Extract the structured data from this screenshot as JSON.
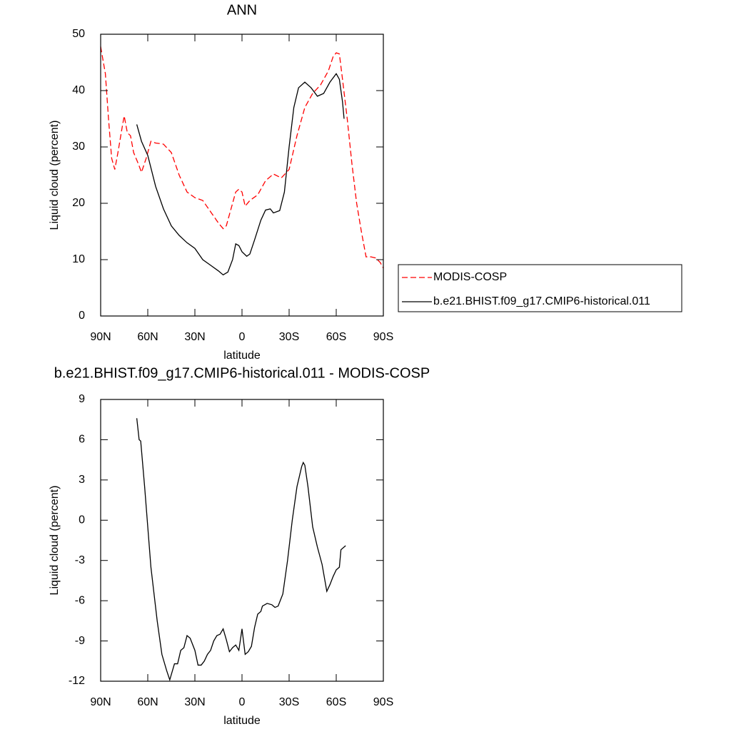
{
  "chart_data": [
    {
      "type": "line",
      "title": "ANN",
      "xlabel": "latitude",
      "ylabel": "Liquid cloud (percent)",
      "xlim": [
        90,
        -90
      ],
      "xticks": [
        {
          "value": 90,
          "label": "90N"
        },
        {
          "value": 60,
          "label": "60N"
        },
        {
          "value": 30,
          "label": "30N"
        },
        0,
        {
          "value": -30,
          "label": "30S"
        },
        {
          "value": -60,
          "label": "60S"
        },
        {
          "value": -90,
          "label": "90S"
        }
      ],
      "ylim": [
        0,
        50
      ],
      "yticks": [
        0,
        10,
        20,
        30,
        40,
        50
      ],
      "legend": "right",
      "series": [
        {
          "name": "MODIS-COSP",
          "color": "#ff0000",
          "dash": "dashed",
          "x": [
            90,
            87,
            85,
            83,
            81,
            79,
            76,
            75,
            73,
            71,
            69,
            66,
            64,
            61,
            58,
            55,
            50,
            45,
            40,
            35,
            30,
            25,
            20,
            15,
            12,
            10,
            7,
            4,
            2,
            0,
            -2,
            -5,
            -10,
            -15,
            -20,
            -25,
            -30,
            -35,
            -40,
            -45,
            -50,
            -55,
            -58,
            -60,
            -62,
            -64,
            -67,
            -70,
            -73,
            -76,
            -79,
            -82,
            -85,
            -88,
            -90
          ],
          "values": [
            47.8,
            43,
            35,
            28,
            26,
            29,
            34,
            35.5,
            32.5,
            32,
            29,
            27,
            25.5,
            28,
            31,
            30.7,
            30.5,
            29,
            25,
            22,
            21,
            20.5,
            18.5,
            16.5,
            15.5,
            16,
            19,
            22,
            22.5,
            22,
            19.5,
            20.5,
            21.5,
            24,
            25.2,
            24.5,
            26,
            32,
            37,
            39.5,
            41,
            43.5,
            46,
            46.7,
            46.5,
            42,
            35,
            27,
            20,
            15,
            10.5,
            10.5,
            10.3,
            9.5,
            8.5
          ]
        },
        {
          "name": "b.e21.BHIST.f09_g17.CMIP6-historical.011",
          "color": "#000000",
          "dash": "solid",
          "x": [
            67,
            64,
            60,
            55,
            50,
            45,
            40,
            35,
            30,
            25,
            20,
            15,
            12,
            9,
            6,
            4,
            2,
            0,
            -3,
            -5,
            -8,
            -12,
            -15,
            -18,
            -20,
            -24,
            -27,
            -30,
            -33,
            -36,
            -40,
            -44,
            -48,
            -52,
            -56,
            -60,
            -62,
            -64,
            -65
          ],
          "values": [
            34,
            31,
            28.5,
            23,
            19,
            16,
            14.3,
            13,
            12,
            10,
            9,
            8,
            7.3,
            7.8,
            10,
            12.8,
            12.5,
            11.4,
            10.6,
            11,
            13.5,
            17,
            18.8,
            19,
            18.3,
            18.7,
            22,
            30,
            37,
            40.5,
            41.5,
            40.5,
            39,
            39.5,
            41.5,
            43,
            42,
            38,
            35
          ]
        }
      ]
    },
    {
      "type": "line",
      "title": "b.e21.BHIST.f09_g17.CMIP6-historical.011 - MODIS-COSP",
      "xlabel": "latitude",
      "ylabel": "Liquid cloud (percent)",
      "xlim": [
        90,
        -90
      ],
      "xticks": [
        {
          "value": 90,
          "label": "90N"
        },
        {
          "value": 60,
          "label": "60N"
        },
        {
          "value": 30,
          "label": "30N"
        },
        0,
        {
          "value": -30,
          "label": "30S"
        },
        {
          "value": -60,
          "label": "60S"
        },
        {
          "value": -90,
          "label": "90S"
        }
      ],
      "ylim": [
        -12,
        9
      ],
      "yticks": [
        -12,
        -9,
        -6,
        -3,
        0,
        3,
        6,
        9
      ],
      "series": [
        {
          "color": "#000000",
          "dash": "solid",
          "x": [
            67,
            65.5,
            64.5,
            62,
            58,
            54,
            51,
            48,
            46,
            43,
            41,
            39,
            37,
            35,
            33,
            30,
            28,
            26,
            24,
            22,
            20,
            18,
            16,
            14,
            12,
            10,
            8,
            6,
            4,
            2,
            0,
            -2,
            -4,
            -6,
            -8,
            -10,
            -12,
            -13,
            -16,
            -19,
            -21,
            -23,
            -26,
            -29,
            -32,
            -35,
            -38,
            -39,
            -40,
            -42,
            -45,
            -48,
            -51,
            -54,
            -56,
            -58,
            -60,
            -62,
            -63,
            -66
          ],
          "values": [
            7.6,
            6.0,
            5.9,
            2.5,
            -3.5,
            -7.5,
            -10,
            -11.2,
            -11.9,
            -10.7,
            -10.7,
            -9.7,
            -9.5,
            -8.6,
            -8.8,
            -9.7,
            -10.8,
            -10.8,
            -10.5,
            -10,
            -9.7,
            -9,
            -8.6,
            -8.5,
            -8.1,
            -8.9,
            -9.8,
            -9.5,
            -9.3,
            -9.7,
            -8.1,
            -10,
            -9.8,
            -9.4,
            -8,
            -7,
            -6.8,
            -6.4,
            -6.2,
            -6.3,
            -6.5,
            -6.4,
            -5.5,
            -3,
            0,
            2.5,
            4,
            4.3,
            4.1,
            2.5,
            -0.5,
            -2,
            -3.3,
            -5.3,
            -4.8,
            -4.2,
            -3.7,
            -3.5,
            -2.2,
            -1.9
          ]
        }
      ]
    }
  ]
}
